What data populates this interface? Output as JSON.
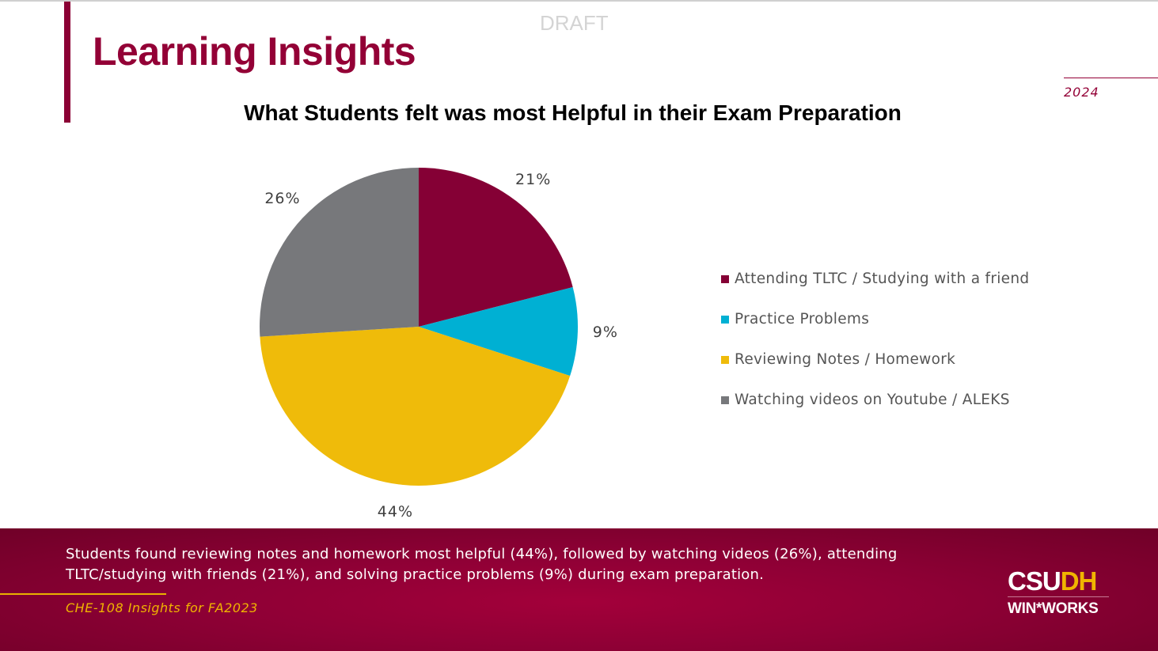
{
  "slide": {
    "watermark": "DRAFT",
    "title": "Learning Insights",
    "year": "2024",
    "summary": "Students found reviewing notes and homework most helpful (44%), followed by watching videos (26%), attending TLTC/studying with friends (21%), and solving practice problems (9%) during exam preparation.",
    "source": "CHE-108 Insights for FA2023",
    "logo": {
      "line1a": "CSU",
      "line1b": "DH",
      "line2": "WIN*WORKS"
    }
  },
  "chart_data": {
    "type": "pie",
    "title": "What Students felt was most Helpful in their Exam Preparation",
    "legend_position": "right",
    "categories": [
      "Attending TLTC / Studying with a friend",
      "Practice Problems",
      "Reviewing Notes / Homework",
      "Watching videos on Youtube / ALEKS"
    ],
    "values": [
      21,
      9,
      44,
      26
    ],
    "labels": [
      "21%",
      "9%",
      "44%",
      "26%"
    ],
    "colors": [
      "#850035",
      "#00b0d3",
      "#efbb0a",
      "#77787b"
    ]
  }
}
